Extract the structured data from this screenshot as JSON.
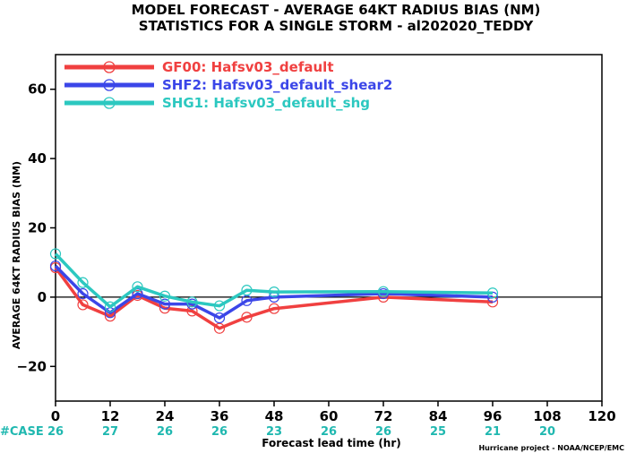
{
  "chart_data": {
    "type": "line",
    "title": "MODEL FORECAST - AVERAGE 64KT RADIUS BIAS (NM)",
    "subtitle": "STATISTICS FOR A SINGLE STORM - al202020_TEDDY",
    "xlabel": "Forecast lead time (hr)",
    "ylabel": "AVERAGE 64KT RADIUS BIAS (NM)",
    "xlim": [
      0,
      120
    ],
    "ylim": [
      -30,
      70
    ],
    "xticks": [
      0,
      12,
      24,
      36,
      48,
      60,
      72,
      84,
      96,
      108,
      120
    ],
    "yticks": [
      -20,
      0,
      20,
      40,
      60
    ],
    "zero_line": true,
    "series": [
      {
        "name": "GF00: Hafsv03_default",
        "color": "#f04040",
        "x": [
          0,
          6,
          12,
          18,
          24,
          30,
          36,
          42,
          48,
          72,
          96
        ],
        "values": [
          8.5,
          -2.2,
          -5.5,
          0.5,
          -3.2,
          -4.0,
          -9.0,
          -5.8,
          -3.3,
          0.0,
          -1.4
        ]
      },
      {
        "name": "SHF2: Hafsv03_default_shear2",
        "color": "#3b46e8",
        "x": [
          0,
          6,
          12,
          18,
          24,
          30,
          36,
          42,
          48,
          72,
          96
        ],
        "values": [
          9.0,
          1.0,
          -4.5,
          1.0,
          -2.0,
          -2.0,
          -6.0,
          -1.0,
          0.0,
          1.0,
          0.0
        ]
      },
      {
        "name": "SHG1: Hafsv03_default_shg",
        "color": "#2cc8c0",
        "x": [
          0,
          6,
          12,
          18,
          24,
          30,
          36,
          42,
          48,
          72,
          96
        ],
        "values": [
          12.5,
          4.2,
          -2.8,
          3.0,
          0.3,
          -1.4,
          -2.5,
          2.0,
          1.5,
          1.6,
          1.2
        ]
      }
    ],
    "cases": {
      "label": "#CASE",
      "x": [
        0,
        12,
        24,
        36,
        48,
        60,
        72,
        84,
        96,
        108
      ],
      "values": [
        "26",
        "27",
        "26",
        "26",
        "23",
        "26",
        "26",
        "25",
        "21",
        "20"
      ]
    },
    "credit": "Hurricane project - NOAA/NCEP/EMC",
    "legend_position": "top-left",
    "grid": false
  },
  "colors": {
    "case_text": "#20b8b0",
    "zero_line": "#000000"
  }
}
